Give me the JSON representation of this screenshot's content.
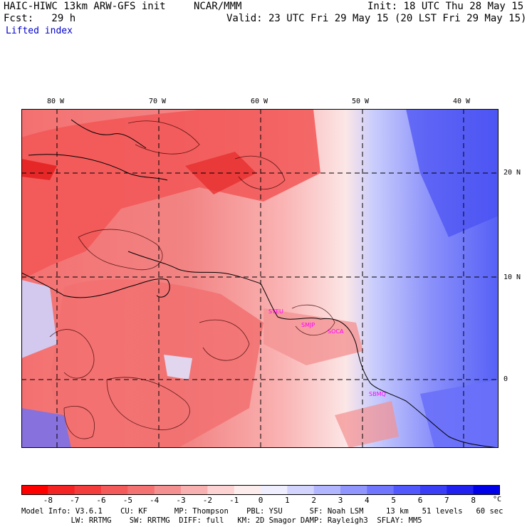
{
  "header": {
    "model_title": "HAIC-HIWC 13km ARW-GFS init",
    "org": "NCAR/MMM",
    "init": "Init: 18 UTC Thu 28 May 15",
    "forecast": "Fcst:   29 h",
    "valid": "Valid: 23 UTC Fri 29 May 15 (20 LST Fri 29 May 15)",
    "field": "Lifted index"
  },
  "map": {
    "lon_labels": [
      "80 W",
      "70 W",
      "60 W",
      "50 W",
      "40 W"
    ],
    "lat_labels": [
      "20 N",
      "10 N",
      "0"
    ],
    "stations": [
      "SYEU",
      "SMJP",
      "SOCA",
      "SBMQ"
    ]
  },
  "colorbar": {
    "unit": "°C",
    "labels": [
      "-8",
      "-7",
      "-6",
      "-5",
      "-4",
      "-3",
      "-2",
      "-1",
      "0",
      "1",
      "2",
      "3",
      "4",
      "5",
      "6",
      "7",
      "8"
    ],
    "colors": [
      "#ff0000",
      "#f42424",
      "#f43c3c",
      "#f45a5a",
      "#f47272",
      "#f49090",
      "#f8b0b0",
      "#fcd2d2",
      "#fcecec",
      "#eeeefe",
      "#d2d4fe",
      "#b2b6fe",
      "#9096fe",
      "#7076fe",
      "#5058fe",
      "#3a3ef6",
      "#2020f0",
      "#0000e8"
    ]
  },
  "footer": {
    "line1": "Model Info: V3.6.1    CU: KF      MP: Thompson    PBL: YSU      SF: Noah LSM     13 km   51 levels   60 sec",
    "line2": "           LW: RRTMG    SW: RRTMG  DIFF: full   KM: 2D Smagor DAMP: Rayleigh3  SFLAY: MM5"
  }
}
